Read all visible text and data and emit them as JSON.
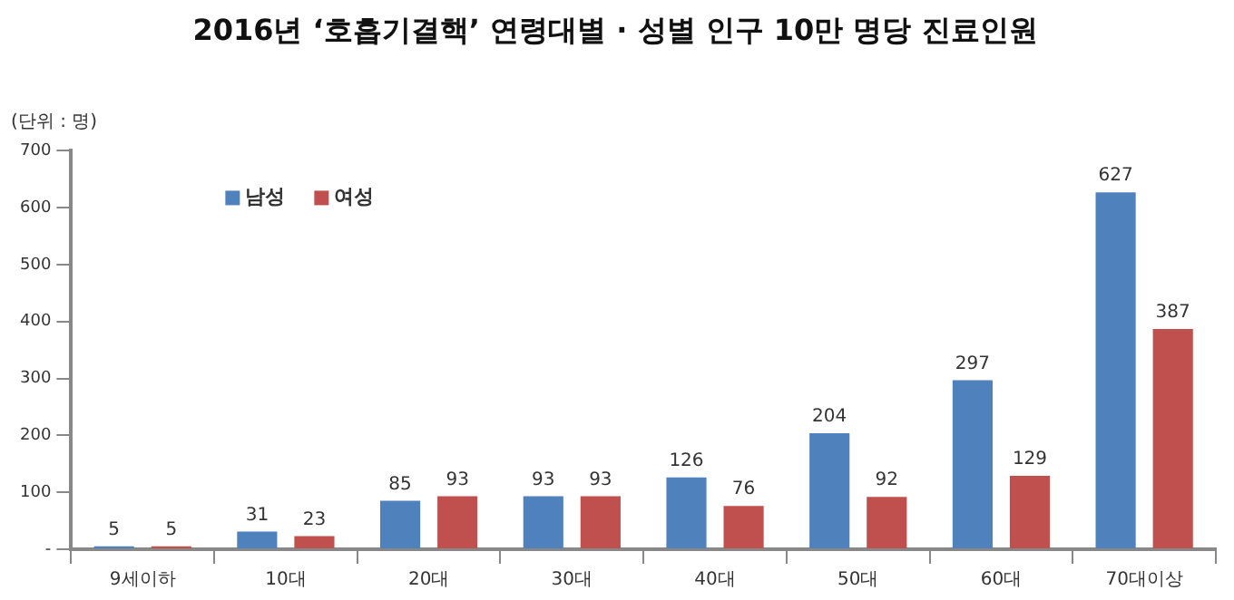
{
  "chart_data": {
    "type": "bar",
    "title": "2016년 ‘호흡기결핵’ 연령대별 · 성별 인구 10만 명당 진료인원",
    "annotations": [
      "(단위 : 명)"
    ],
    "categories": [
      "9세이하",
      "10대",
      "20대",
      "30대",
      "40대",
      "50대",
      "60대",
      "70대이상"
    ],
    "series": [
      {
        "name": "남성",
        "color": "#4f81bd",
        "values": [
          5,
          31,
          85,
          93,
          126,
          204,
          297,
          627
        ]
      },
      {
        "name": "여성",
        "color": "#c0504d",
        "values": [
          5,
          23,
          93,
          93,
          76,
          92,
          129,
          387
        ]
      }
    ],
    "ylim": [
      0,
      700
    ],
    "yticks": [
      {
        "value": 0,
        "label": "-"
      },
      100,
      200,
      300,
      400,
      500,
      600,
      700
    ],
    "grid": false,
    "legend": "top left",
    "data_labels": true
  }
}
